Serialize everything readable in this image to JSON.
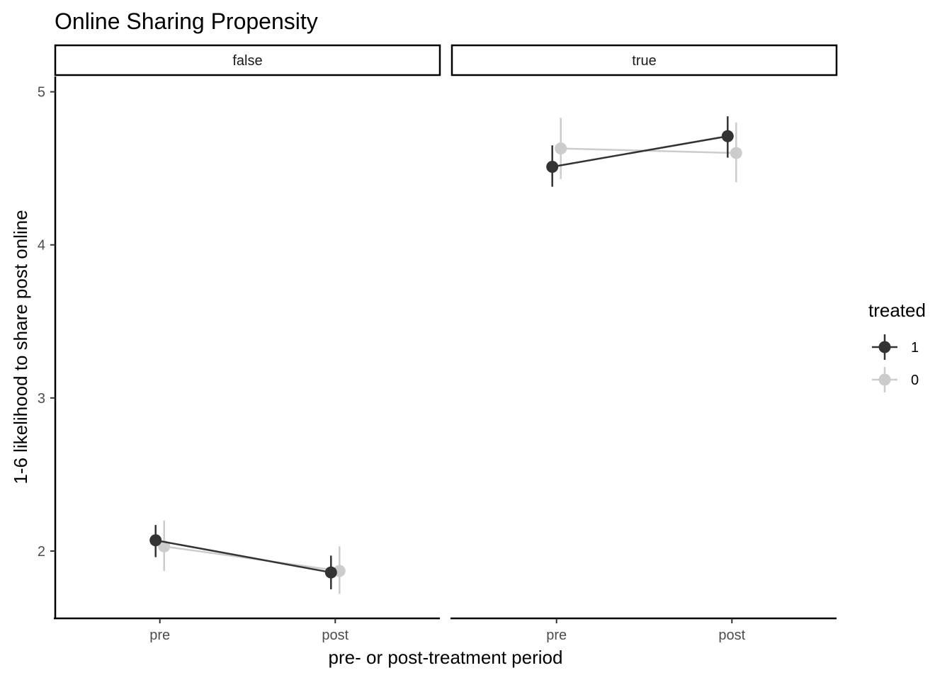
{
  "chart_data": {
    "type": "line",
    "title": "Online Sharing Propensity",
    "xlabel": "pre- or post-treatment period",
    "ylabel": "1-6 likelihood to share post online",
    "categories": [
      "pre",
      "post"
    ],
    "ylim": [
      1.56,
      5.1
    ],
    "yticks": [
      2,
      3,
      4,
      5
    ],
    "grid": false,
    "legend": {
      "title": "treated",
      "placement": "right",
      "entries": [
        "1",
        "0"
      ]
    },
    "colors": {
      "1": "#333333",
      "0": "#cccccc"
    },
    "panels": [
      {
        "label": "false",
        "series": [
          {
            "name": "1",
            "values": [
              2.07,
              1.86
            ],
            "lower": [
              1.96,
              1.75
            ],
            "upper": [
              2.17,
              1.97
            ]
          },
          {
            "name": "0",
            "values": [
              2.03,
              1.87
            ],
            "lower": [
              1.87,
              1.72
            ],
            "upper": [
              2.2,
              2.03
            ]
          }
        ]
      },
      {
        "label": "true",
        "series": [
          {
            "name": "1",
            "values": [
              4.51,
              4.71
            ],
            "lower": [
              4.38,
              4.57
            ],
            "upper": [
              4.65,
              4.84
            ]
          },
          {
            "name": "0",
            "values": [
              4.63,
              4.6
            ],
            "lower": [
              4.43,
              4.41
            ],
            "upper": [
              4.83,
              4.8
            ]
          }
        ]
      }
    ]
  }
}
